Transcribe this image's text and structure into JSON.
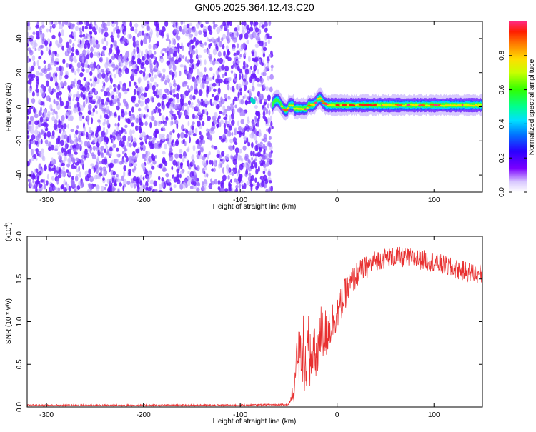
{
  "title": "GN05.2025.364.12.43.C20",
  "colors": {
    "plot_bg": "#ffffff",
    "axis": "#000000",
    "snr_line": "#e83030",
    "speckle": "#6a1bff",
    "speckle_light": "#c6b2ff"
  },
  "chart_data": [
    {
      "type": "heatmap",
      "name": "spectrogram",
      "xlabel": "Height of straight line (km)",
      "ylabel": "Frequency (Hz)",
      "xlim": [
        -320,
        150
      ],
      "ylim": [
        -50,
        50
      ],
      "xticks": [
        -300,
        -200,
        -100,
        0,
        100
      ],
      "yticks": [
        -40,
        -20,
        0,
        20,
        40
      ],
      "noise_region_x": [
        -320,
        -67
      ],
      "signal_region_x": [
        -67,
        150
      ],
      "signal_center_hz": 1,
      "colorbar": {
        "label": "Normalized spectral amplitude",
        "range": [
          0,
          1
        ],
        "ticks": [
          0.0,
          0.2,
          0.4,
          0.6,
          0.8
        ],
        "tick_labels": [
          "0.0",
          "0.2",
          "0.4",
          "0.6",
          "0.8"
        ],
        "colormap": "rainbow"
      }
    },
    {
      "type": "line",
      "name": "snr",
      "xlabel": "Height of straight line (km)",
      "ylabel": "SNR (10 * v/v)",
      "scale_label_base": "(x10",
      "scale_label_exp": "4",
      "scale_label_end": ")",
      "xlim": [
        -320,
        150
      ],
      "ylim": [
        0,
        2.0
      ],
      "xticks": [
        -300,
        -200,
        -100,
        0,
        100
      ],
      "yticks": [
        0.0,
        0.5,
        1.0,
        1.5,
        2.0
      ],
      "ytick_labels": [
        "0.0",
        "0.5",
        "1.0",
        "1.5",
        "2.0"
      ],
      "profile": {
        "x": [
          -320,
          -100,
          -50,
          -44,
          -40,
          -35,
          -30,
          -25,
          -20,
          -15,
          -10,
          0,
          10,
          20,
          40,
          60,
          80,
          100,
          120,
          150
        ],
        "y": [
          0.02,
          0.02,
          0.03,
          0.2,
          0.6,
          0.5,
          0.6,
          0.55,
          0.65,
          0.8,
          0.9,
          1.1,
          1.35,
          1.55,
          1.72,
          1.76,
          1.74,
          1.7,
          1.62,
          1.55
        ],
        "noise": [
          0.01,
          0.01,
          0.01,
          0.15,
          0.45,
          0.35,
          0.35,
          0.35,
          0.35,
          0.35,
          0.3,
          0.2,
          0.2,
          0.15,
          0.12,
          0.12,
          0.12,
          0.12,
          0.12,
          0.12
        ]
      }
    }
  ]
}
